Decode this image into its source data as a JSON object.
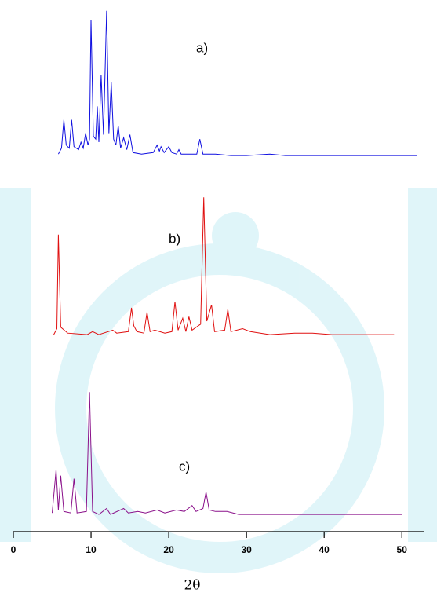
{
  "chart_data": {
    "type": "line",
    "x_label": "2θ",
    "xlim": [
      0,
      52.5
    ],
    "xticks": [
      0,
      10,
      20,
      30,
      40,
      50
    ],
    "series": [
      {
        "name": "a)",
        "color": "#1010e0",
        "x": [
          5.8,
          6.2,
          6.5,
          6.8,
          7.2,
          7.5,
          7.8,
          8.4,
          8.7,
          9.0,
          9.3,
          9.6,
          9.8,
          10.0,
          10.3,
          10.6,
          10.8,
          11.0,
          11.3,
          11.6,
          12.0,
          12.3,
          12.6,
          12.9,
          13.2,
          13.5,
          13.8,
          14.2,
          14.6,
          15.0,
          15.4,
          16.5,
          18.0,
          18.5,
          18.8,
          19.0,
          19.4,
          20.0,
          20.4,
          21.0,
          21.3,
          21.6,
          23.6,
          24.0,
          24.4,
          26,
          28,
          30,
          33,
          35,
          40,
          45,
          52
        ],
        "values": [
          2,
          6,
          25,
          8,
          6,
          25,
          7,
          5,
          10,
          6,
          16,
          8,
          12,
          92,
          14,
          12,
          34,
          10,
          55,
          15,
          98,
          16,
          50,
          12,
          8,
          21,
          6,
          13,
          5,
          15,
          3,
          2,
          3,
          8,
          4,
          7,
          3,
          7,
          3,
          2,
          5,
          2,
          2,
          12,
          2,
          2,
          1,
          1,
          2,
          1,
          1,
          1,
          1
        ]
      },
      {
        "name": "b)",
        "color": "#e01010",
        "x": [
          5.2,
          5.6,
          5.8,
          6.1,
          7,
          9.5,
          10.2,
          11,
          12.8,
          13.3,
          14.8,
          15.2,
          15.5,
          15.9,
          16.8,
          17.2,
          17.6,
          18.2,
          19.5,
          20.4,
          20.8,
          21.2,
          21.8,
          22.2,
          22.6,
          23.0,
          24.1,
          24.5,
          24.9,
          25.5,
          25.9,
          27.2,
          27.6,
          28.0,
          29.5,
          30.5,
          33,
          36.2,
          38.5,
          41,
          45,
          49
        ],
        "values": [
          1,
          5,
          68,
          6,
          2,
          1,
          3,
          1,
          4,
          2,
          3,
          19,
          7,
          3,
          2,
          16,
          3,
          4,
          2,
          3,
          23,
          4,
          12,
          3,
          13,
          4,
          8,
          93,
          10,
          21,
          3,
          4,
          18,
          3,
          5,
          3,
          1,
          2,
          2,
          1,
          1,
          1
        ]
      },
      {
        "name": "c)",
        "color": "#8a108a",
        "x": [
          5.0,
          5.5,
          5.8,
          6.1,
          6.5,
          7.4,
          7.8,
          8.2,
          9.4,
          9.8,
          10.2,
          11,
          12,
          12.5,
          14.2,
          14.8,
          16,
          17,
          18.5,
          19.5,
          21,
          22,
          23,
          23.5,
          24.4,
          24.8,
          25.2,
          26,
          27.5,
          29,
          35,
          40,
          45,
          50
        ],
        "values": [
          2,
          31,
          4,
          27,
          3,
          2,
          25,
          2,
          3,
          83,
          3,
          1,
          5,
          1,
          5,
          2,
          3,
          2,
          4,
          2,
          4,
          3,
          7,
          3,
          5,
          16,
          4,
          3,
          3,
          1,
          1,
          1,
          1,
          1
        ]
      }
    ]
  }
}
